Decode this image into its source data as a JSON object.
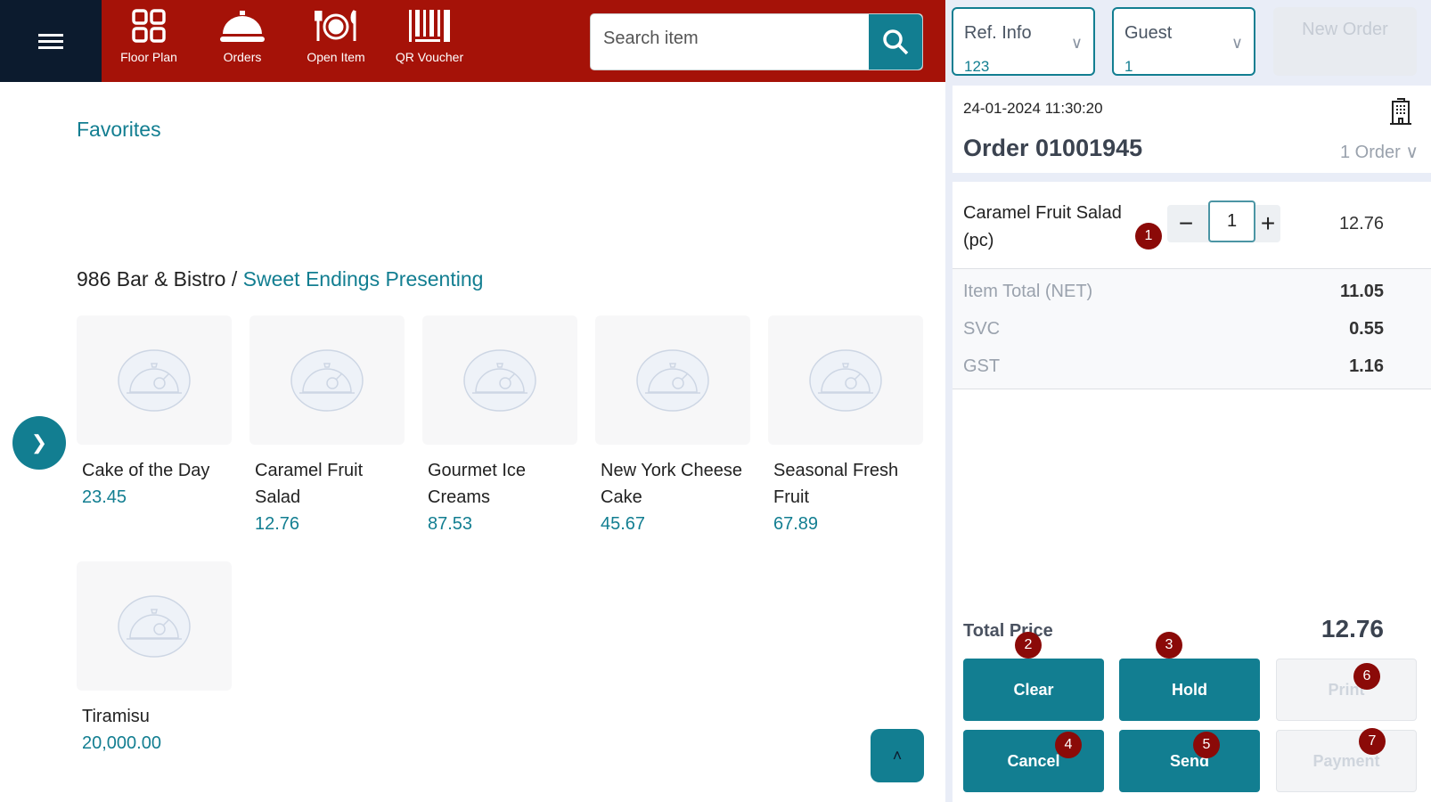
{
  "header": {
    "nav": [
      {
        "label": "Floor Plan",
        "icon": "grid-icon"
      },
      {
        "label": "Orders",
        "icon": "cloche-icon"
      },
      {
        "label": "Open Item",
        "icon": "plate-cutlery-icon"
      },
      {
        "label": "QR Voucher",
        "icon": "barcode-icon"
      }
    ],
    "search_placeholder": "Search item"
  },
  "main": {
    "favorites": "Favorites",
    "breadcrumb_root": "986 Bar & Bistro / ",
    "breadcrumb_current": "Sweet Endings Presenting",
    "products": [
      {
        "name": "Cake of the Day",
        "price": "23.45"
      },
      {
        "name": "Caramel Fruit Salad",
        "price": "12.76"
      },
      {
        "name": "Gourmet Ice Creams",
        "price": "87.53"
      },
      {
        "name": "New York Cheese Cake",
        "price": "45.67"
      },
      {
        "name": "Seasonal Fresh Fruit",
        "price": "67.89"
      },
      {
        "name": "Tiramisu",
        "price": "20,000.00"
      }
    ]
  },
  "order": {
    "ref_label": "Ref. Info",
    "ref_value": "123",
    "guest_label": "Guest",
    "guest_value": "1",
    "new_order": "New Order",
    "datetime": "24-01-2024 11:30:20",
    "title": "Order 01001945",
    "order_count": "1 Order",
    "item": {
      "name": "Caramel Fruit Salad (pc)",
      "qty": "1",
      "price": "12.76"
    },
    "summary": [
      {
        "label": "Item Total (NET)",
        "value": "11.05"
      },
      {
        "label": "SVC",
        "value": "0.55"
      },
      {
        "label": "GST",
        "value": "1.16"
      }
    ],
    "total_label": "Total Price",
    "total": "12.76",
    "buttons": {
      "clear": "Clear",
      "hold": "Hold",
      "print": "Print",
      "cancel": "Cancel",
      "send": "Send",
      "payment": "Payment"
    },
    "badges": [
      "1",
      "2",
      "3",
      "4",
      "5",
      "6",
      "7"
    ]
  },
  "colors": {
    "brand": "#a51208",
    "accent": "#127e91",
    "badge": "#8b0a08",
    "dark": "#0c1b2e"
  }
}
